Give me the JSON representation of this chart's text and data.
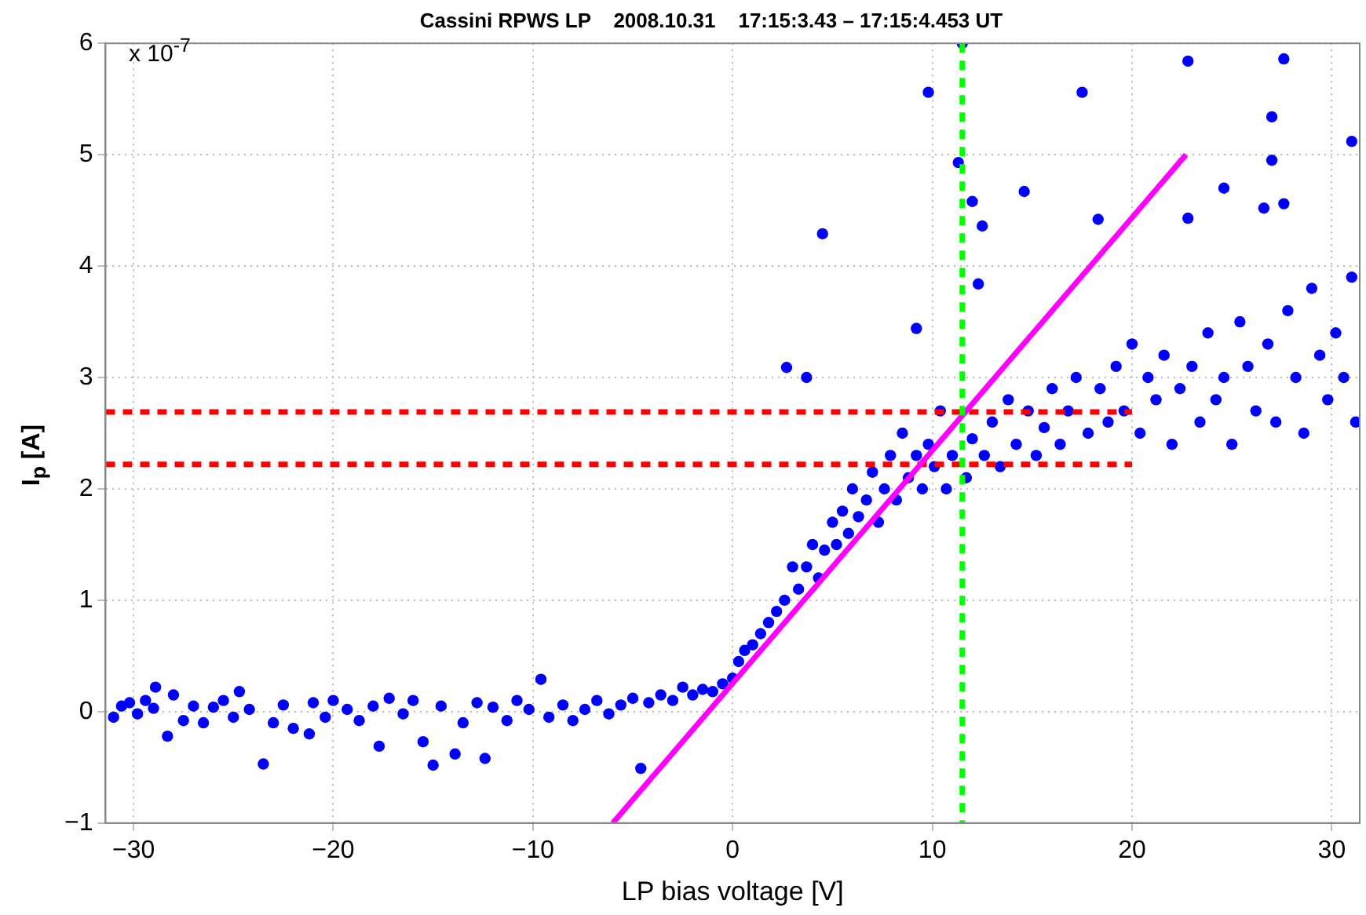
{
  "chart_data": {
    "type": "scatter",
    "title": "Cassini RPWS LP    2008.10.31    17:15:3.43 – 17:15:4.453 UT",
    "xlabel": "LP bias voltage [V]",
    "ylabel": "I$_{p}$ [A]",
    "annotations": [
      "x 10$^{-7}$"
    ],
    "xlim": [
      -31.4,
      31.4
    ],
    "xticks": [
      -30,
      -20,
      -10,
      0,
      10,
      20,
      30
    ],
    "ylim": [
      -1,
      6
    ],
    "yticks": [
      -1,
      0,
      1,
      2,
      3,
      4,
      5,
      6
    ],
    "grid": true,
    "legend": false,
    "series": [
      {
        "marker": "circle",
        "color": "#0000ff",
        "x": [
          -31.0,
          -30.6,
          -30.2,
          -29.8,
          -29.4,
          -29.0,
          -28.9,
          -28.3,
          -28.0,
          -27.5,
          -27.0,
          -26.5,
          -26.0,
          -25.5,
          -25.0,
          -24.7,
          -24.2,
          -23.5,
          -23.0,
          -22.5,
          -22.0,
          -21.2,
          -21.0,
          -20.4,
          -20.0,
          -19.3,
          -18.7,
          -18.0,
          -17.7,
          -17.2,
          -16.5,
          -16.0,
          -15.5,
          -15.0,
          -14.6,
          -13.9,
          -13.5,
          -12.8,
          -12.4,
          -12.0,
          -11.3,
          -10.8,
          -10.2,
          -9.6,
          -9.2,
          -8.5,
          -8.0,
          -7.4,
          -6.8,
          -6.2,
          -5.6,
          -5.0,
          -4.6,
          -4.2,
          -3.6,
          -3.0,
          -2.5,
          -2.0,
          -1.5,
          -1.0,
          -0.5,
          0,
          0.3,
          0.6,
          1.0,
          1.4,
          1.8,
          2.2,
          2.6,
          2.7,
          3.0,
          3.3,
          3.7,
          3.7,
          4.0,
          4.3,
          4.5,
          4.6,
          5.0,
          5.2,
          5.5,
          5.8,
          6.0,
          6.3,
          6.7,
          7.0,
          7.3,
          7.6,
          7.9,
          8.2,
          8.5,
          8.8,
          9.2,
          9.2,
          9.5,
          9.8,
          9.8,
          10.1,
          10.4,
          10.7,
          11.0,
          11.3,
          11.5,
          11.7,
          12.0,
          12.0,
          12.3,
          12.5,
          12.6,
          13.0,
          13.4,
          13.8,
          14.2,
          14.6,
          14.8,
          15.2,
          15.6,
          16.0,
          16.4,
          16.8,
          17.2,
          17.5,
          17.8,
          18.3,
          18.4,
          18.8,
          19.2,
          19.6,
          20.0,
          20.4,
          20.8,
          21.2,
          21.6,
          22.0,
          22.4,
          22.8,
          22.8,
          23.0,
          23.4,
          23.8,
          24.2,
          24.6,
          24.6,
          25.0,
          25.4,
          25.8,
          26.2,
          26.6,
          26.8,
          27.0,
          27.0,
          27.2,
          27.6,
          27.6,
          27.8,
          28.2,
          28.6,
          29.0,
          29.4,
          29.8,
          30.2,
          30.6,
          31.0,
          31.0,
          31.2
        ],
        "values": [
          -0.05,
          0.05,
          0.08,
          -0.02,
          0.1,
          0.03,
          0.22,
          -0.22,
          0.15,
          -0.08,
          0.05,
          -0.1,
          0.04,
          0.1,
          -0.05,
          0.18,
          0.02,
          -0.47,
          -0.1,
          0.06,
          -0.15,
          -0.2,
          0.08,
          -0.05,
          0.1,
          0.02,
          -0.08,
          0.05,
          -0.31,
          0.12,
          -0.02,
          0.1,
          -0.27,
          -0.48,
          0.05,
          -0.38,
          -0.1,
          0.08,
          -0.42,
          0.04,
          -0.08,
          0.1,
          0.02,
          0.29,
          -0.05,
          0.06,
          -0.08,
          0.02,
          0.1,
          -0.02,
          0.06,
          0.12,
          -0.51,
          0.08,
          0.15,
          0.1,
          0.22,
          0.15,
          0.2,
          0.18,
          0.25,
          0.3,
          0.45,
          0.55,
          0.6,
          0.7,
          0.8,
          0.9,
          1.0,
          3.09,
          1.3,
          1.1,
          3.0,
          1.3,
          1.5,
          1.2,
          4.29,
          1.45,
          1.7,
          1.5,
          1.8,
          1.6,
          2.0,
          1.75,
          1.9,
          2.15,
          1.7,
          2.0,
          2.3,
          1.9,
          2.5,
          2.1,
          3.44,
          2.3,
          2.0,
          5.56,
          2.4,
          2.2,
          2.7,
          2.0,
          2.3,
          4.93,
          6.0,
          2.1,
          4.58,
          2.45,
          3.84,
          4.36,
          2.3,
          2.6,
          2.2,
          2.8,
          2.4,
          4.67,
          2.7,
          2.3,
          2.55,
          2.9,
          2.4,
          2.7,
          3.0,
          5.56,
          2.5,
          4.42,
          2.9,
          2.6,
          3.1,
          2.7,
          3.3,
          2.5,
          3.0,
          2.8,
          3.2,
          2.4,
          2.9,
          4.43,
          5.84,
          3.1,
          2.6,
          3.4,
          2.8,
          4.7,
          3.0,
          2.4,
          3.5,
          3.1,
          2.7,
          4.52,
          3.3,
          5.34,
          4.95,
          2.6,
          4.56,
          5.86,
          3.6,
          3.0,
          2.5,
          3.8,
          3.2,
          2.8,
          3.4,
          3.0,
          5.12,
          3.9,
          2.6
        ]
      },
      {
        "type": "line",
        "marker": "none",
        "line_style": "solid",
        "color": "#ff00ff",
        "x": [
          -6,
          22.7
        ],
        "values": [
          -1,
          5
        ]
      },
      {
        "type": "line",
        "marker": "none",
        "line_style": "dashed",
        "color": "#ff0000",
        "x": [
          -31.4,
          20
        ],
        "values": [
          2.69,
          2.69
        ]
      },
      {
        "type": "line",
        "marker": "none",
        "line_style": "dashed",
        "color": "#ff0000",
        "x": [
          -31.4,
          20
        ],
        "values": [
          2.22,
          2.22
        ]
      }
    ],
    "ref_lines": [
      {
        "axis": "x",
        "value": 11.5,
        "color": "#00ff00",
        "line_style": "dashed"
      }
    ]
  }
}
